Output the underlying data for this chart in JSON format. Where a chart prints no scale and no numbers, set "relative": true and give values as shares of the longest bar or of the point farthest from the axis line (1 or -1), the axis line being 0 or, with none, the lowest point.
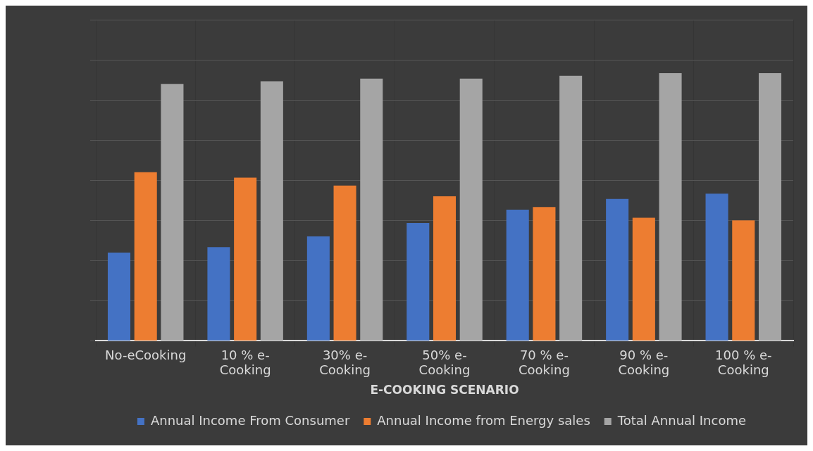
{
  "chart_data": {
    "type": "bar",
    "relative": true,
    "xlabel": "E-COOKING SCENARIO",
    "categories": [
      "No-eCooking",
      "10 % e-Cooking",
      "30% e-Cooking",
      "50% e-Cooking",
      "70 % e-Cooking",
      "90 % e-Cooking",
      "100 % e-Cooking"
    ],
    "series": [
      {
        "name": "Annual Income From Consumer",
        "color": "#4472c4",
        "values": [
          0.33,
          0.35,
          0.39,
          0.44,
          0.49,
          0.53,
          0.55
        ]
      },
      {
        "name": "Annual Income from Energy sales",
        "color": "#ed7d31",
        "values": [
          0.63,
          0.61,
          0.58,
          0.54,
          0.5,
          0.46,
          0.45
        ]
      },
      {
        "name": "Total Annual Income",
        "color": "#a5a5a5",
        "values": [
          0.96,
          0.97,
          0.98,
          0.98,
          0.99,
          1.0,
          1.0
        ]
      }
    ],
    "grid": true,
    "legend": "bottom"
  }
}
